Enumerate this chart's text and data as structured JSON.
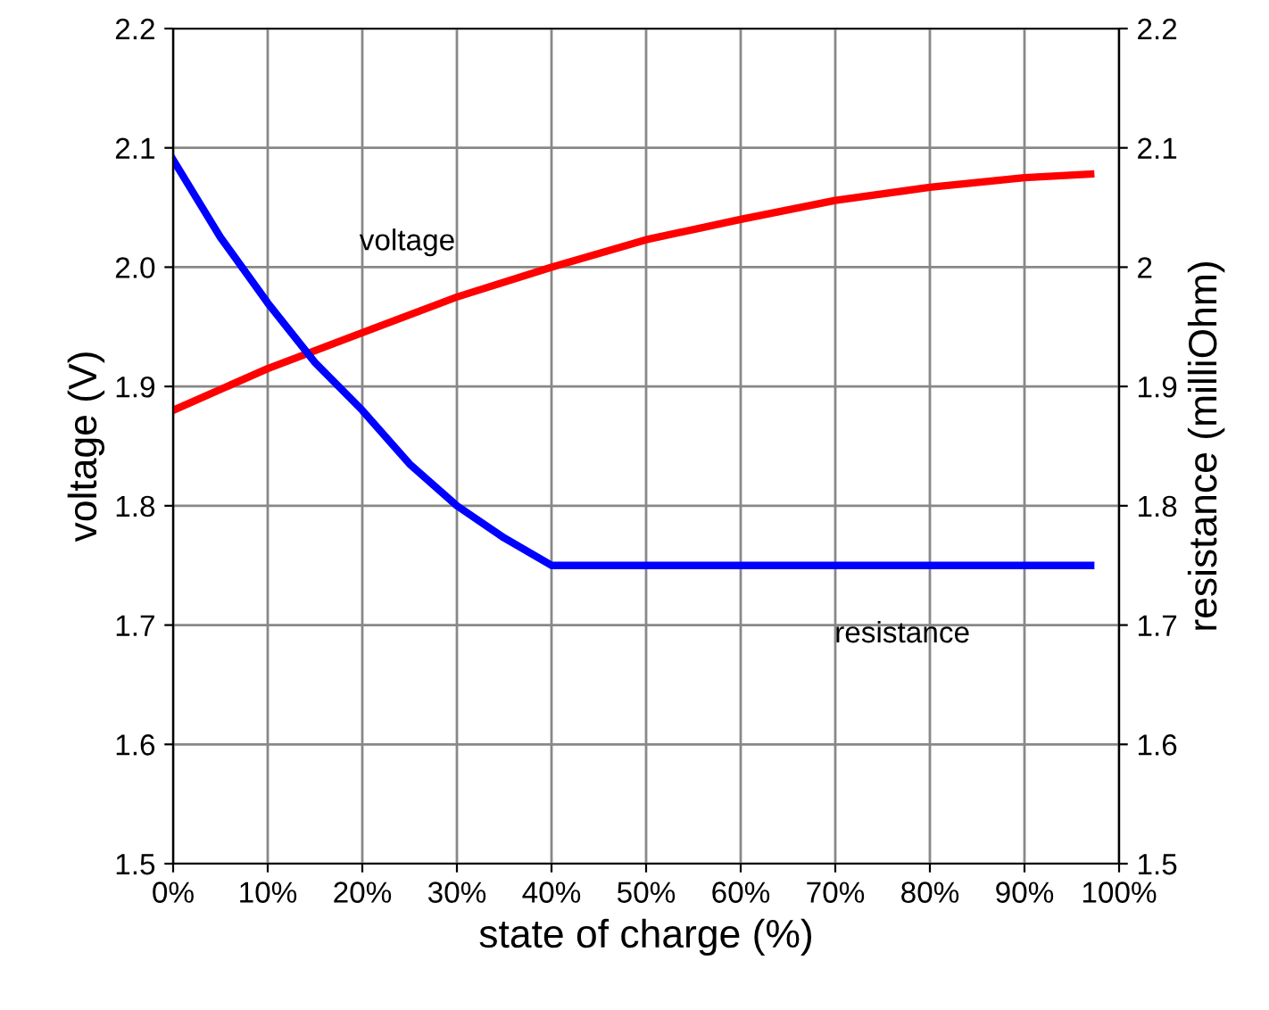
{
  "chart_data": {
    "type": "line",
    "xlabel": "state of charge (%)",
    "ylabel": "voltage (V)",
    "y2label": "resistance (milliOhm)",
    "xlim": [
      0,
      100
    ],
    "xticks": [
      {
        "value": 0,
        "label": "0%"
      },
      {
        "value": 10,
        "label": "10%"
      },
      {
        "value": 20,
        "label": "20%"
      },
      {
        "value": 30,
        "label": "30%"
      },
      {
        "value": 40,
        "label": "40%"
      },
      {
        "value": 50,
        "label": "50%"
      },
      {
        "value": 60,
        "label": "60%"
      },
      {
        "value": 70,
        "label": "70%"
      },
      {
        "value": 80,
        "label": "80%"
      },
      {
        "value": 90,
        "label": "90%"
      },
      {
        "value": 100,
        "label": "100%"
      }
    ],
    "ylim": [
      1.5,
      2.2
    ],
    "yticks": [
      1.5,
      1.6,
      1.7,
      1.8,
      1.9,
      {
        "value": 2.0,
        "label": "2.0"
      },
      2.1,
      2.2
    ],
    "y2lim": [
      1.5,
      2.2
    ],
    "y2ticks": [
      1.5,
      1.6,
      1.7,
      1.8,
      1.9,
      2,
      2.1,
      2.2
    ],
    "grid": true,
    "legend": false,
    "marker": "none",
    "line_style": "solid",
    "series": [
      {
        "name": "voltage",
        "color": "#ff0000",
        "x": [
          0,
          10,
          20,
          30,
          40,
          50,
          60,
          70,
          80,
          90,
          97
        ],
        "values": [
          1.88,
          1.915,
          1.945,
          1.975,
          2.0,
          2.023,
          2.04,
          2.056,
          2.067,
          2.075,
          2.078
        ]
      },
      {
        "name": "resistance",
        "color": "#0000ff",
        "axis": "y2",
        "x": [
          0,
          5,
          10,
          15,
          20,
          25,
          30,
          35,
          40,
          97
        ],
        "values": [
          2.09,
          2.025,
          1.97,
          1.92,
          1.88,
          1.835,
          1.8,
          1.773,
          1.75,
          1.75
        ]
      }
    ]
  }
}
